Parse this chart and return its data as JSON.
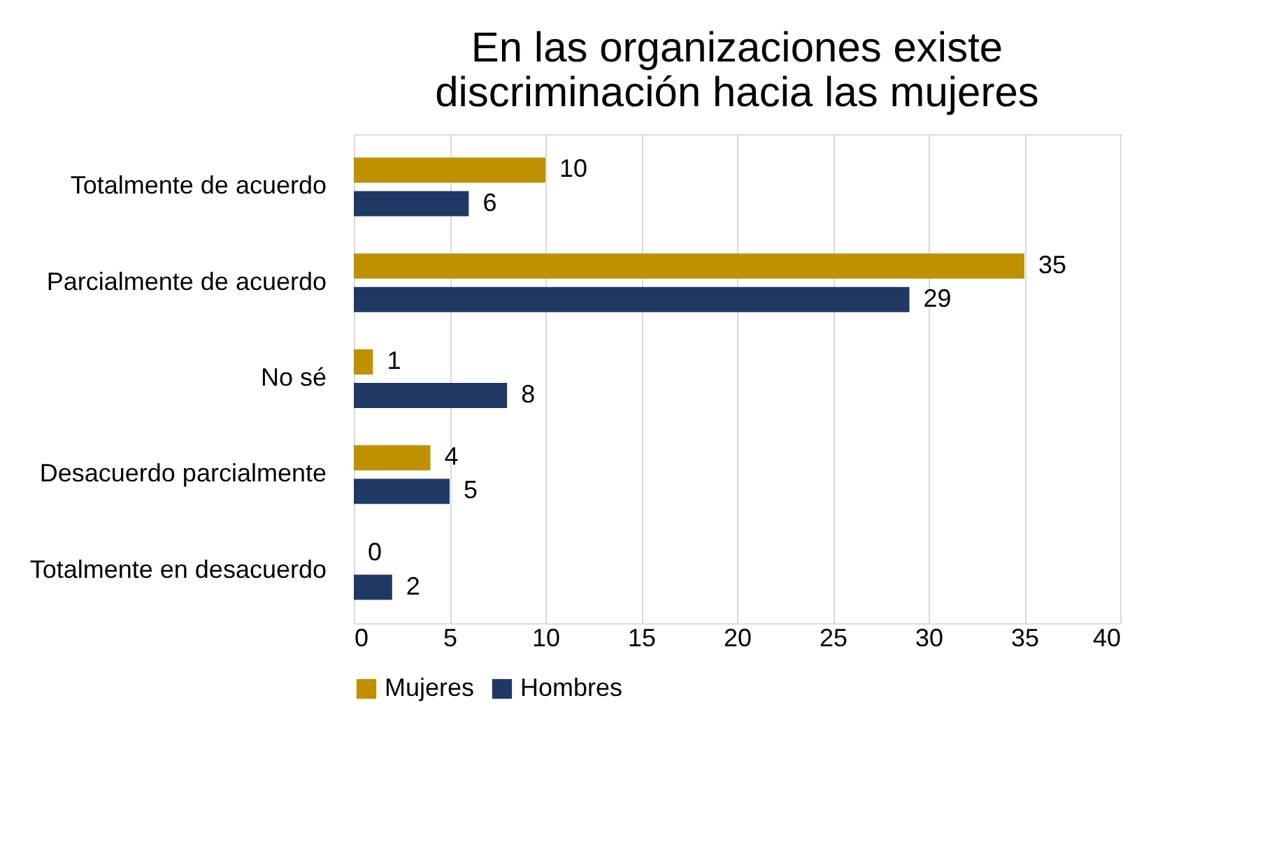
{
  "chart_data": {
    "type": "bar",
    "orientation": "horizontal",
    "title": "En las organizaciones existe discriminación hacia las mujeres",
    "categories": [
      "Totalmente de acuerdo",
      "Parcialmente de acuerdo",
      "No sé",
      "Desacuerdo parcialmente",
      "Totalmente en desacuerdo"
    ],
    "series": [
      {
        "name": "Mujeres",
        "color": "#bf9000",
        "values": [
          10,
          35,
          1,
          4,
          0
        ]
      },
      {
        "name": "Hombres",
        "color": "#203864",
        "values": [
          6,
          29,
          8,
          5,
          2
        ]
      }
    ],
    "xlim": [
      0,
      40
    ],
    "xticks": [
      0,
      5,
      10,
      15,
      20,
      25,
      30,
      35,
      40
    ],
    "grid": "x",
    "legend": "bottom",
    "data_labels": true
  }
}
